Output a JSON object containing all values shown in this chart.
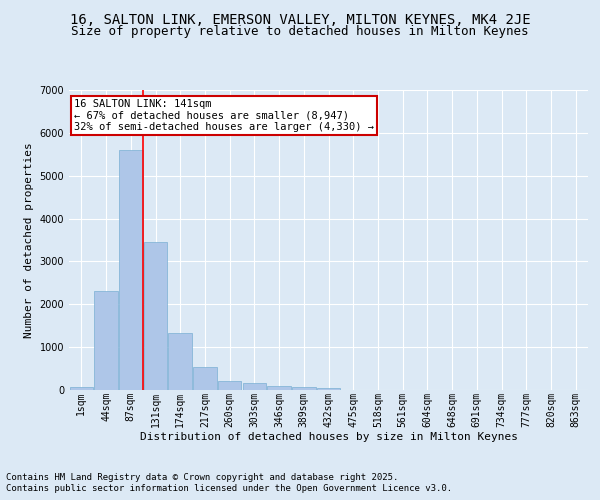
{
  "title_line1": "16, SALTON LINK, EMERSON VALLEY, MILTON KEYNES, MK4 2JE",
  "title_line2": "Size of property relative to detached houses in Milton Keynes",
  "xlabel": "Distribution of detached houses by size in Milton Keynes",
  "ylabel": "Number of detached properties",
  "categories": [
    "1sqm",
    "44sqm",
    "87sqm",
    "131sqm",
    "174sqm",
    "217sqm",
    "260sqm",
    "303sqm",
    "346sqm",
    "389sqm",
    "432sqm",
    "475sqm",
    "518sqm",
    "561sqm",
    "604sqm",
    "648sqm",
    "691sqm",
    "734sqm",
    "777sqm",
    "820sqm",
    "863sqm"
  ],
  "values": [
    70,
    2300,
    5600,
    3450,
    1320,
    530,
    210,
    170,
    95,
    60,
    40,
    10,
    0,
    0,
    0,
    0,
    0,
    0,
    0,
    0,
    0
  ],
  "bar_color": "#aec6e8",
  "bar_edge_color": "#7aafd4",
  "annotation_text": "16 SALTON LINK: 141sqm\n← 67% of detached houses are smaller (8,947)\n32% of semi-detached houses are larger (4,330) →",
  "annotation_box_color": "#ffffff",
  "annotation_box_edge": "#cc0000",
  "red_line_x": 3,
  "ylim": [
    0,
    7000
  ],
  "yticks": [
    0,
    1000,
    2000,
    3000,
    4000,
    5000,
    6000,
    7000
  ],
  "background_color": "#dce9f5",
  "grid_color": "#ffffff",
  "footer_line1": "Contains HM Land Registry data © Crown copyright and database right 2025.",
  "footer_line2": "Contains public sector information licensed under the Open Government Licence v3.0.",
  "title_fontsize": 10,
  "subtitle_fontsize": 9,
  "tick_fontsize": 7,
  "ylabel_fontsize": 8,
  "xlabel_fontsize": 8,
  "annotation_fontsize": 7.5,
  "footer_fontsize": 6.5
}
